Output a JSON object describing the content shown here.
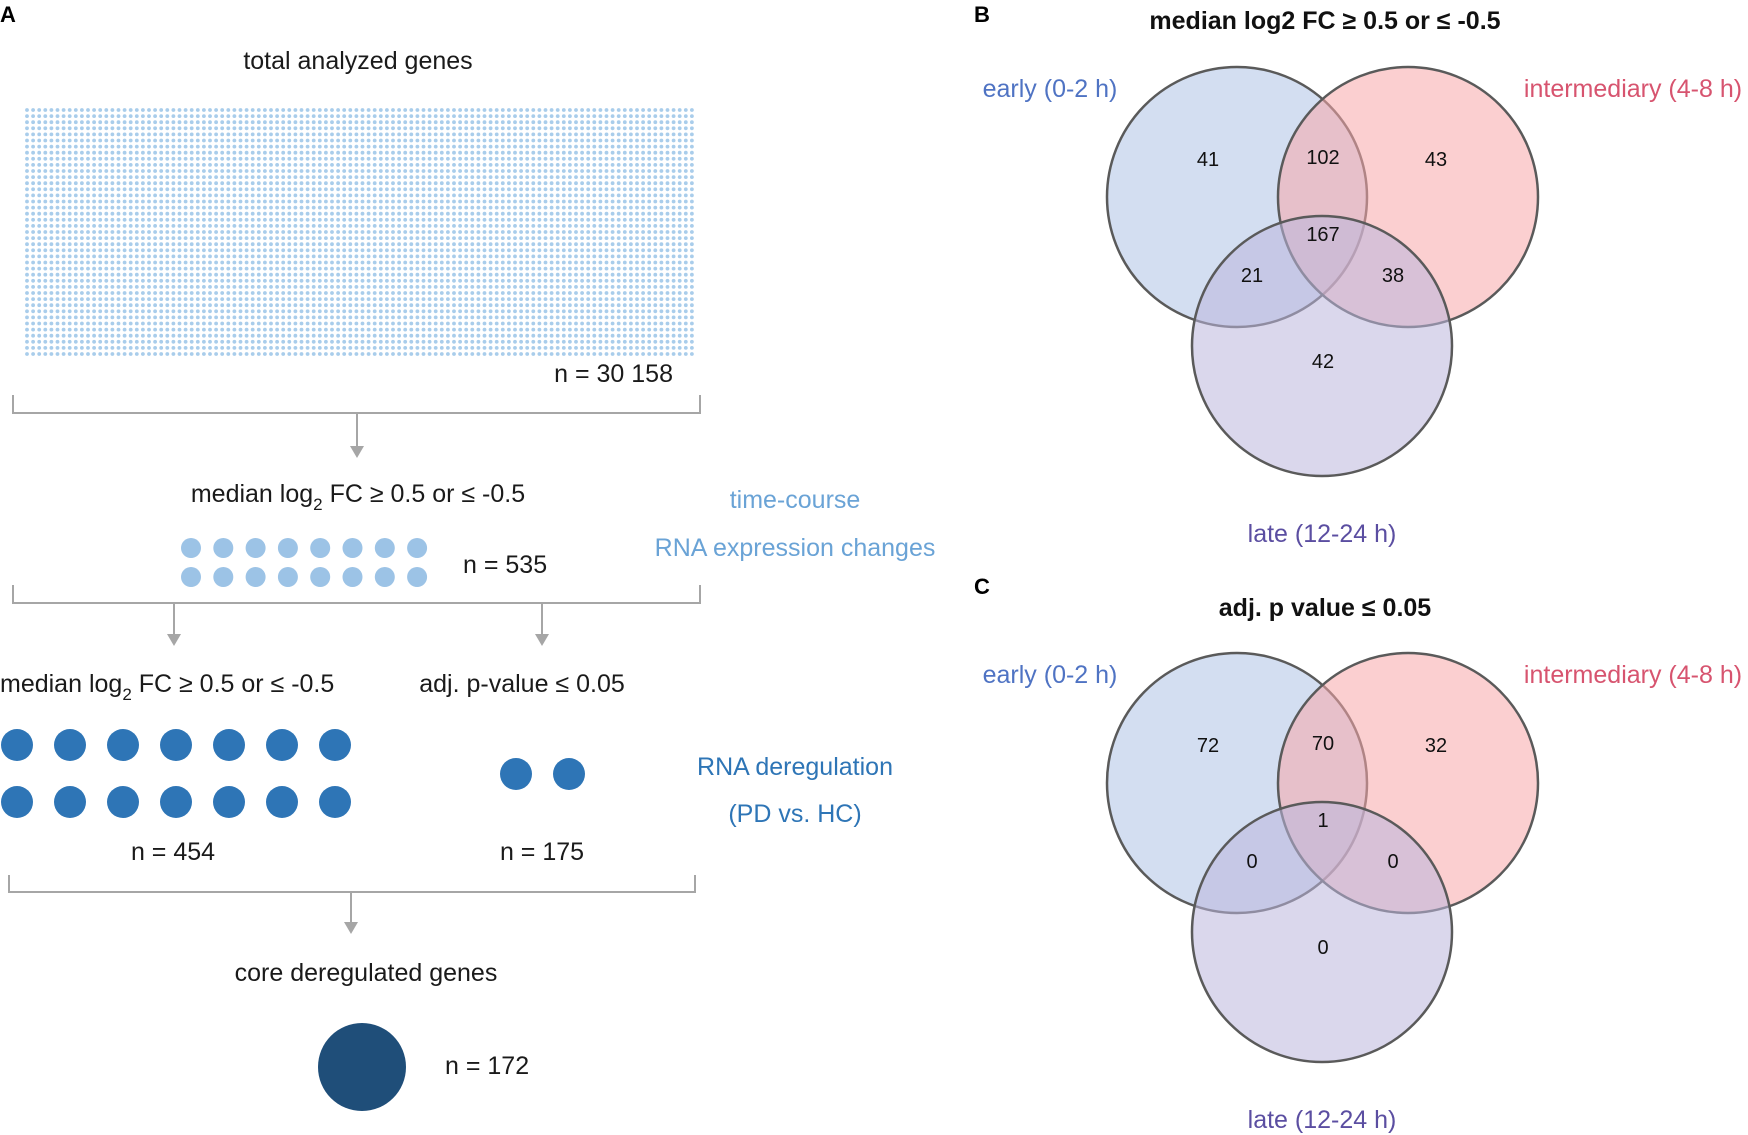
{
  "panelA": {
    "letter": "A",
    "title": "total analyzed genes",
    "total_n": "n = 30 158",
    "step1_prefix": "median log",
    "step1_sub": "2",
    "step1_suffix": " FC ≥ 0.5 or ≤ -0.5",
    "step1_n": "n = 535",
    "timecourse_line1": "time-course",
    "timecourse_line2": "RNA expression changes",
    "fc_prefix": "median log",
    "fc_sub": "2",
    "fc_suffix": " FC ≥ 0.5 or ≤ -0.5",
    "pval_label": "adj. p-value ≤ 0.05",
    "fc_n": "n = 454",
    "pval_n": "n = 175",
    "dereg_line1": "RNA deregulation",
    "dereg_line2": "(PD vs. HC)",
    "core_label": "core deregulated genes",
    "core_n": "n = 172"
  },
  "panelB": {
    "letter": "B",
    "title": "median log2 FC ≥ 0.5 or ≤ -0.5",
    "set_early": "early (0-2 h)",
    "set_intermediary": "intermediary (4-8 h)",
    "set_late": "late (12-24 h)",
    "values": {
      "early_only": "41",
      "early_inter": "102",
      "inter_only": "43",
      "all_three": "167",
      "early_late": "21",
      "inter_late": "38",
      "late_only": "42"
    }
  },
  "panelC": {
    "letter": "C",
    "title": "adj. p value ≤ 0.05",
    "set_early": "early (0-2 h)",
    "set_intermediary": "intermediary (4-8 h)",
    "set_late": "late (12-24 h)",
    "values": {
      "early_only": "72",
      "early_inter": "70",
      "inter_only": "32",
      "all_three": "1",
      "early_late": "0",
      "inter_late": "0",
      "late_only": "0"
    }
  },
  "colors": {
    "tiny_dots": "#a9cdeb",
    "light_dots": "#9cc3e6",
    "mid_dots": "#2e75b6",
    "core_dot": "#1f4e79",
    "early_fill": "#aec3e6",
    "inter_fill": "#f8a8aa",
    "late_fill": "#bcb6dd",
    "circle_stroke": "#5a5a5a",
    "bracket": "#a6a6a6"
  }
}
